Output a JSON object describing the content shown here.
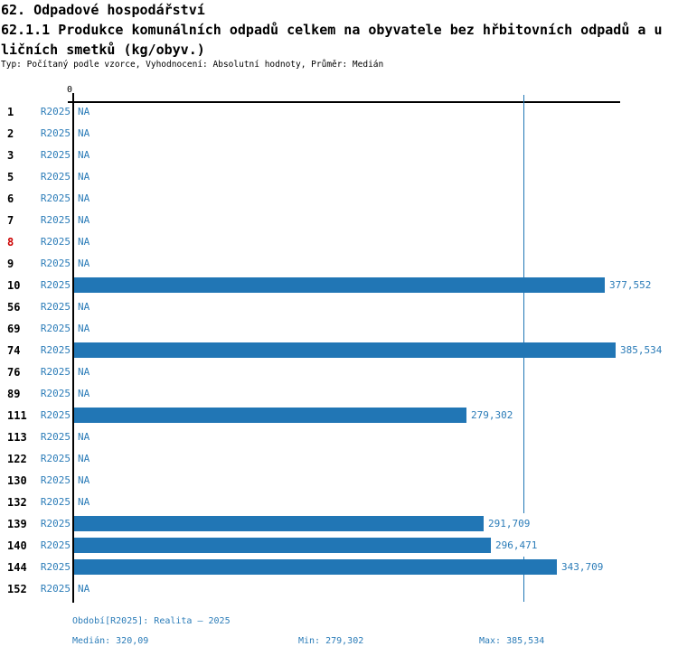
{
  "header": {
    "title_line1": "62. Odpadové hospodářství",
    "title_line2": "62.1.1 Produkce komunálních odpadů celkem na obyvatele bez hřbitovních odpadů a u",
    "title_line3": "ličních smetků (kg/obyv.)",
    "subtitle": "Typ: Počítaný podle vzorce, Vyhodnocení: Absolutní hodnoty, Průměr: Medián"
  },
  "chart_data": {
    "type": "bar",
    "orientation": "horizontal",
    "title": "62.1.1 Produkce komunálních odpadů celkem na obyvatele bez hřbitovních odpadů a uličních smetků (kg/obyv.)",
    "series_label": "R2025",
    "na_label": "NA",
    "axis": {
      "zero_label": "0",
      "xmin": 0,
      "xmax": 388.8,
      "grid": false
    },
    "median_value": 320.09,
    "min_value": 279.302,
    "max_value": 385.534,
    "categories": [
      "1",
      "2",
      "3",
      "5",
      "6",
      "7",
      "8",
      "9",
      "10",
      "56",
      "69",
      "74",
      "76",
      "89",
      "111",
      "113",
      "122",
      "130",
      "132",
      "139",
      "140",
      "144",
      "152"
    ],
    "rows": [
      {
        "id": "1",
        "value": null,
        "display": "NA",
        "highlight": false
      },
      {
        "id": "2",
        "value": null,
        "display": "NA",
        "highlight": false
      },
      {
        "id": "3",
        "value": null,
        "display": "NA",
        "highlight": false
      },
      {
        "id": "5",
        "value": null,
        "display": "NA",
        "highlight": false
      },
      {
        "id": "6",
        "value": null,
        "display": "NA",
        "highlight": false
      },
      {
        "id": "7",
        "value": null,
        "display": "NA",
        "highlight": false
      },
      {
        "id": "8",
        "value": null,
        "display": "NA",
        "highlight": true
      },
      {
        "id": "9",
        "value": null,
        "display": "NA",
        "highlight": false
      },
      {
        "id": "10",
        "value": 377.552,
        "display": "377,552",
        "highlight": false
      },
      {
        "id": "56",
        "value": null,
        "display": "NA",
        "highlight": false
      },
      {
        "id": "69",
        "value": null,
        "display": "NA",
        "highlight": false
      },
      {
        "id": "74",
        "value": 385.534,
        "display": "385,534",
        "highlight": false
      },
      {
        "id": "76",
        "value": null,
        "display": "NA",
        "highlight": false
      },
      {
        "id": "89",
        "value": null,
        "display": "NA",
        "highlight": false
      },
      {
        "id": "111",
        "value": 279.302,
        "display": "279,302",
        "highlight": false
      },
      {
        "id": "113",
        "value": null,
        "display": "NA",
        "highlight": false
      },
      {
        "id": "122",
        "value": null,
        "display": "NA",
        "highlight": false
      },
      {
        "id": "130",
        "value": null,
        "display": "NA",
        "highlight": false
      },
      {
        "id": "132",
        "value": null,
        "display": "NA",
        "highlight": false
      },
      {
        "id": "139",
        "value": 291.709,
        "display": "291,709",
        "highlight": false
      },
      {
        "id": "140",
        "value": 296.471,
        "display": "296,471",
        "highlight": false
      },
      {
        "id": "144",
        "value": 343.709,
        "display": "343,709",
        "highlight": false
      },
      {
        "id": "152",
        "value": null,
        "display": "NA",
        "highlight": false
      }
    ],
    "colors": {
      "bar": "#2176b5",
      "blue_text": "#2b7cb8",
      "median_line": "#2176b5",
      "highlight_red": "#cc0000",
      "axis_black": "#000000"
    }
  },
  "footer": {
    "period": "Období[R2025]: Realita – 2025",
    "median": "Medián: 320,09",
    "min": "Min: 279,302",
    "max": "Max: 385,534"
  }
}
